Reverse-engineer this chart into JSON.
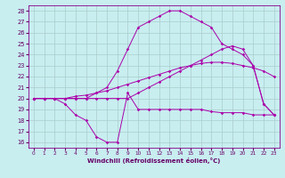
{
  "background_color": "#c8eef0",
  "grid_color": "#aacccc",
  "line_color": "#aa00aa",
  "x_label": "Windchill (Refroidissement éolien,°C)",
  "ylim": [
    15.5,
    28.5
  ],
  "xlim": [
    -0.5,
    23.5
  ],
  "yticks": [
    16,
    17,
    18,
    19,
    20,
    21,
    22,
    23,
    24,
    25,
    26,
    27,
    28
  ],
  "xticks": [
    0,
    1,
    2,
    3,
    4,
    5,
    6,
    7,
    8,
    9,
    10,
    11,
    12,
    13,
    14,
    15,
    16,
    17,
    18,
    19,
    20,
    21,
    22,
    23
  ],
  "line1": [
    20.0,
    20.0,
    20.0,
    20.0,
    20.0,
    20.0,
    20.0,
    20.0,
    20.0,
    20.0,
    20.5,
    21.0,
    21.5,
    22.0,
    22.5,
    23.0,
    23.5,
    24.0,
    24.5,
    24.8,
    24.5,
    23.0,
    19.5,
    18.5
  ],
  "line2": [
    20.0,
    20.0,
    20.0,
    20.0,
    20.0,
    20.0,
    20.5,
    21.0,
    22.5,
    24.5,
    26.5,
    27.0,
    27.5,
    28.0,
    28.0,
    27.5,
    27.0,
    26.5,
    25.0,
    24.5,
    24.0,
    23.0,
    19.5,
    18.5
  ],
  "line3": [
    20.0,
    20.0,
    20.0,
    19.5,
    18.5,
    18.0,
    16.5,
    16.0,
    16.0,
    20.5,
    19.0,
    19.0,
    19.0,
    19.0,
    19.0,
    19.0,
    19.0,
    18.8,
    18.7,
    18.7,
    18.7,
    18.5,
    18.5,
    18.5
  ],
  "line4": [
    20.0,
    20.0,
    20.0,
    20.0,
    20.2,
    20.3,
    20.5,
    20.7,
    21.0,
    21.3,
    21.6,
    21.9,
    22.2,
    22.5,
    22.8,
    23.0,
    23.2,
    23.3,
    23.3,
    23.2,
    23.0,
    22.8,
    22.5,
    22.0
  ]
}
